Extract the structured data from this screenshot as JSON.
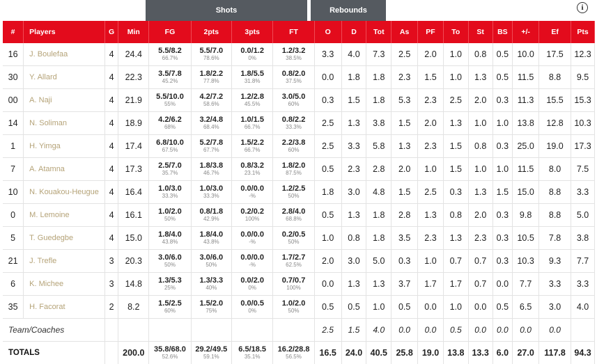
{
  "groups": {
    "shots": "Shots",
    "rebounds": "Rebounds"
  },
  "info_icon": "info-icon",
  "headers": [
    "#",
    "Players",
    "G",
    "Min",
    "FG",
    "2pts",
    "3pts",
    "FT",
    "O",
    "D",
    "Tot",
    "As",
    "PF",
    "To",
    "St",
    "BS",
    "+/-",
    "Ef",
    "Pts"
  ],
  "players": [
    {
      "num": "16",
      "name": "J. Boulefaa",
      "g": "4",
      "min": "24.4",
      "fg": "5.5/8.2",
      "fg_pct": "66.7%",
      "p2": "5.5/7.0",
      "p2_pct": "78.6%",
      "p3": "0.0/1.2",
      "p3_pct": "0%",
      "ft": "1.2/3.2",
      "ft_pct": "38.5%",
      "o": "3.3",
      "d": "4.0",
      "tot": "7.3",
      "as": "2.5",
      "pf": "2.0",
      "to": "1.0",
      "st": "0.8",
      "bs": "0.5",
      "pm": "10.0",
      "ef": "17.5",
      "pts": "12.3"
    },
    {
      "num": "30",
      "name": "Y. Allard",
      "g": "4",
      "min": "22.3",
      "fg": "3.5/7.8",
      "fg_pct": "45.2%",
      "p2": "1.8/2.2",
      "p2_pct": "77.8%",
      "p3": "1.8/5.5",
      "p3_pct": "31.8%",
      "ft": "0.8/2.0",
      "ft_pct": "37.5%",
      "o": "0.0",
      "d": "1.8",
      "tot": "1.8",
      "as": "2.3",
      "pf": "1.5",
      "to": "1.0",
      "st": "1.3",
      "bs": "0.5",
      "pm": "11.5",
      "ef": "8.8",
      "pts": "9.5"
    },
    {
      "num": "00",
      "name": "A. Naji",
      "g": "4",
      "min": "21.9",
      "fg": "5.5/10.0",
      "fg_pct": "55%",
      "p2": "4.2/7.2",
      "p2_pct": "58.6%",
      "p3": "1.2/2.8",
      "p3_pct": "45.5%",
      "ft": "3.0/5.0",
      "ft_pct": "60%",
      "o": "0.3",
      "d": "1.5",
      "tot": "1.8",
      "as": "5.3",
      "pf": "2.3",
      "to": "2.5",
      "st": "2.0",
      "bs": "0.3",
      "pm": "11.3",
      "ef": "15.5",
      "pts": "15.3"
    },
    {
      "num": "14",
      "name": "N. Soliman",
      "g": "4",
      "min": "18.9",
      "fg": "4.2/6.2",
      "fg_pct": "68%",
      "p2": "3.2/4.8",
      "p2_pct": "68.4%",
      "p3": "1.0/1.5",
      "p3_pct": "66.7%",
      "ft": "0.8/2.2",
      "ft_pct": "33.3%",
      "o": "2.5",
      "d": "1.3",
      "tot": "3.8",
      "as": "1.5",
      "pf": "2.0",
      "to": "1.3",
      "st": "1.0",
      "bs": "1.0",
      "pm": "13.8",
      "ef": "12.8",
      "pts": "10.3"
    },
    {
      "num": "1",
      "name": "H. Yimga",
      "g": "4",
      "min": "17.4",
      "fg": "6.8/10.0",
      "fg_pct": "67.5%",
      "p2": "5.2/7.8",
      "p2_pct": "67.7%",
      "p3": "1.5/2.2",
      "p3_pct": "66.7%",
      "ft": "2.2/3.8",
      "ft_pct": "60%",
      "o": "2.5",
      "d": "3.3",
      "tot": "5.8",
      "as": "1.3",
      "pf": "2.3",
      "to": "1.5",
      "st": "0.8",
      "bs": "0.3",
      "pm": "25.0",
      "ef": "19.0",
      "pts": "17.3"
    },
    {
      "num": "7",
      "name": "A. Atamna",
      "g": "4",
      "min": "17.3",
      "fg": "2.5/7.0",
      "fg_pct": "35.7%",
      "p2": "1.8/3.8",
      "p2_pct": "46.7%",
      "p3": "0.8/3.2",
      "p3_pct": "23.1%",
      "ft": "1.8/2.0",
      "ft_pct": "87.5%",
      "o": "0.5",
      "d": "2.3",
      "tot": "2.8",
      "as": "2.0",
      "pf": "1.0",
      "to": "1.5",
      "st": "1.0",
      "bs": "1.0",
      "pm": "11.5",
      "ef": "8.0",
      "pts": "7.5"
    },
    {
      "num": "10",
      "name": "N. Kouakou-Heugue",
      "g": "4",
      "min": "16.4",
      "fg": "1.0/3.0",
      "fg_pct": "33.3%",
      "p2": "1.0/3.0",
      "p2_pct": "33.3%",
      "p3": "0.0/0.0",
      "p3_pct": "-%",
      "ft": "1.2/2.5",
      "ft_pct": "50%",
      "o": "1.8",
      "d": "3.0",
      "tot": "4.8",
      "as": "1.5",
      "pf": "2.5",
      "to": "0.3",
      "st": "1.3",
      "bs": "1.5",
      "pm": "15.0",
      "ef": "8.8",
      "pts": "3.3"
    },
    {
      "num": "0",
      "name": "M. Lemoine",
      "g": "4",
      "min": "16.1",
      "fg": "1.0/2.0",
      "fg_pct": "50%",
      "p2": "0.8/1.8",
      "p2_pct": "42.9%",
      "p3": "0.2/0.2",
      "p3_pct": "100%",
      "ft": "2.8/4.0",
      "ft_pct": "68.8%",
      "o": "0.5",
      "d": "1.3",
      "tot": "1.8",
      "as": "2.8",
      "pf": "1.3",
      "to": "0.8",
      "st": "2.0",
      "bs": "0.3",
      "pm": "9.8",
      "ef": "8.8",
      "pts": "5.0"
    },
    {
      "num": "5",
      "name": "T. Guedegbe",
      "g": "4",
      "min": "15.0",
      "fg": "1.8/4.0",
      "fg_pct": "43.8%",
      "p2": "1.8/4.0",
      "p2_pct": "43.8%",
      "p3": "0.0/0.0",
      "p3_pct": "-%",
      "ft": "0.2/0.5",
      "ft_pct": "50%",
      "o": "1.0",
      "d": "0.8",
      "tot": "1.8",
      "as": "3.5",
      "pf": "2.3",
      "to": "1.3",
      "st": "2.3",
      "bs": "0.3",
      "pm": "10.5",
      "ef": "7.8",
      "pts": "3.8"
    },
    {
      "num": "21",
      "name": "J. Trefle",
      "g": "3",
      "min": "20.3",
      "fg": "3.0/6.0",
      "fg_pct": "50%",
      "p2": "3.0/6.0",
      "p2_pct": "50%",
      "p3": "0.0/0.0",
      "p3_pct": "-%",
      "ft": "1.7/2.7",
      "ft_pct": "62.5%",
      "o": "2.0",
      "d": "3.0",
      "tot": "5.0",
      "as": "0.3",
      "pf": "1.0",
      "to": "0.7",
      "st": "0.7",
      "bs": "0.3",
      "pm": "10.3",
      "ef": "9.3",
      "pts": "7.7"
    },
    {
      "num": "6",
      "name": "K. Michee",
      "g": "3",
      "min": "14.8",
      "fg": "1.3/5.3",
      "fg_pct": "25%",
      "p2": "1.3/3.3",
      "p2_pct": "40%",
      "p3": "0.0/2.0",
      "p3_pct": "0%",
      "ft": "0.7/0.7",
      "ft_pct": "100%",
      "o": "0.0",
      "d": "1.3",
      "tot": "1.3",
      "as": "3.7",
      "pf": "1.7",
      "to": "1.7",
      "st": "0.7",
      "bs": "0.0",
      "pm": "7.7",
      "ef": "3.3",
      "pts": "3.3"
    },
    {
      "num": "35",
      "name": "H. Facorat",
      "g": "2",
      "min": "8.2",
      "fg": "1.5/2.5",
      "fg_pct": "60%",
      "p2": "1.5/2.0",
      "p2_pct": "75%",
      "p3": "0.0/0.5",
      "p3_pct": "0%",
      "ft": "1.0/2.0",
      "ft_pct": "50%",
      "o": "0.5",
      "d": "0.5",
      "tot": "1.0",
      "as": "0.5",
      "pf": "0.0",
      "to": "1.0",
      "st": "0.0",
      "bs": "0.5",
      "pm": "6.5",
      "ef": "3.0",
      "pts": "4.0"
    }
  ],
  "team": {
    "label": "Team/Coaches",
    "o": "2.5",
    "d": "1.5",
    "tot": "4.0",
    "as": "0.0",
    "pf": "0.0",
    "to": "0.5",
    "st": "0.0",
    "bs": "0.0",
    "pm": "0.0",
    "ef": "0.0"
  },
  "totals": {
    "label": "TOTALS",
    "min": "200.0",
    "fg": "35.8/68.0",
    "fg_pct": "52.6%",
    "p2": "29.2/49.5",
    "p2_pct": "59.1%",
    "p3": "6.5/18.5",
    "p3_pct": "35.1%",
    "ft": "16.2/28.8",
    "ft_pct": "56.5%",
    "o": "16.5",
    "d": "24.0",
    "tot": "40.5",
    "as": "25.8",
    "pf": "19.0",
    "to": "13.8",
    "st": "13.3",
    "bs": "6.0",
    "pm": "27.0",
    "ef": "117.8",
    "pts": "94.3"
  },
  "colors": {
    "header_red": "#e30b1c",
    "group_gray": "#555a60",
    "player_name": "#b5a378"
  }
}
